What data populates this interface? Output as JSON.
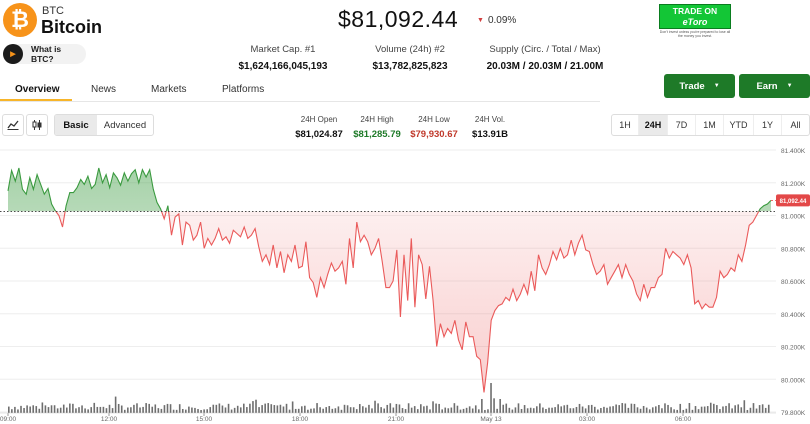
{
  "coin": {
    "ticker": "BTC",
    "name": "Bitcoin",
    "logo_glyph": "₿",
    "what_is": "What is BTC?"
  },
  "price": {
    "value": "$81,092.44",
    "change": "0.09%",
    "direction": "down"
  },
  "promo": {
    "line1": "TRADE ON",
    "line2": "eToro",
    "fine": "Don't invest unless you're prepared to lose all the money you invest."
  },
  "stats": [
    {
      "label": "Market Cap. #1",
      "value": "$1,624,166,045,193"
    },
    {
      "label": "Volume (24h) #2",
      "value": "$13,782,825,823"
    },
    {
      "label": "Supply (Circ. / Total / Max)",
      "value": "20.03M / 20.03M / 21.00M"
    }
  ],
  "tabs": [
    "Overview",
    "News",
    "Markets",
    "Platforms"
  ],
  "actions": {
    "trade": "Trade",
    "earn": "Earn"
  },
  "toolbar": {
    "basic": "Basic",
    "advanced": "Advanced"
  },
  "ohlc": [
    {
      "label": "24H Open",
      "value": "$81,024.87",
      "color": "#111111"
    },
    {
      "label": "24H High",
      "value": "$81,285.79",
      "color": "#1e7a28"
    },
    {
      "label": "24H Low",
      "value": "$79,930.67",
      "color": "#c0392b"
    },
    {
      "label": "24H Vol.",
      "value": "$13.91B",
      "color": "#111111"
    }
  ],
  "ranges": [
    "1H",
    "24H",
    "7D",
    "1M",
    "YTD",
    "1Y",
    "All"
  ],
  "colors": {
    "up": "#3a9a3f",
    "down": "#ea5a5a",
    "accent": "#f7b52a",
    "button": "#1e7a28"
  },
  "chart_data": {
    "type": "line",
    "reference_line": 81024.87,
    "ylim": [
      79800,
      81400
    ],
    "y_ticks": [
      "81.400K",
      "81.200K",
      "81.000K",
      "80.800K",
      "80.600K",
      "80.400K",
      "80.200K",
      "80.000K",
      "79.800K"
    ],
    "x_ticks": [
      "09:00",
      "12:00",
      "15:00",
      "18:00",
      "21:00",
      "May 13",
      "03:00",
      "06:00"
    ],
    "price_label": "81,092.44",
    "series": [
      {
        "values": [
          81150,
          81275,
          81210,
          81290,
          81160,
          81130,
          81230,
          81160,
          81250,
          81190,
          81130,
          81165,
          81070,
          81030,
          81000,
          80930,
          81060,
          81140,
          81140,
          81170,
          81220,
          81190,
          81240,
          81165,
          81190,
          81290,
          81200,
          81250,
          81170,
          81260,
          81230,
          81185,
          81260,
          81210,
          81255,
          81280,
          81200,
          81280,
          81235,
          81280,
          81160,
          81080,
          81040,
          80980,
          81060,
          80880,
          80990,
          81010,
          80820,
          80960,
          80940,
          80850,
          80880,
          80960,
          80800,
          80860,
          80820,
          80860,
          80920,
          80850,
          80870,
          80830,
          80910,
          80890,
          80870,
          80930,
          80860,
          80880,
          80920,
          80810,
          80720,
          80760,
          80700,
          80820,
          80680,
          80780,
          80650,
          80760,
          80720,
          80820,
          80680,
          80690,
          80840,
          80620,
          80590,
          80500,
          80620,
          80560,
          80640,
          80710,
          80660,
          80680,
          80720,
          80580,
          80860,
          80680,
          80960,
          80840,
          80880,
          80840,
          80760,
          80800,
          80860,
          80720,
          80560,
          80560,
          80600,
          80790,
          80380,
          80760,
          80480,
          80860,
          80440,
          80760,
          80700,
          80490,
          80690,
          80480,
          80200,
          80340,
          80260,
          80310,
          80280,
          80360,
          80240,
          80180,
          80350,
          80260,
          80260,
          80140,
          80120,
          79920,
          80100,
          80360,
          80420,
          80450,
          80460,
          80500,
          80480,
          80550,
          80480,
          80520,
          80580,
          80520,
          80660,
          80540,
          80760,
          80680,
          80640,
          80700,
          80780,
          80730,
          80800,
          80740,
          80760,
          80850,
          80760,
          80830,
          80880,
          80790,
          80780,
          80700,
          80640,
          80660,
          80700,
          80580,
          80620,
          80660,
          80700,
          80620,
          80700,
          80640,
          80600,
          80520,
          80480,
          80580,
          80500,
          80560,
          80560,
          80620,
          80640,
          80800,
          80740,
          80780,
          80760,
          80740,
          80700,
          80760,
          80680,
          80460,
          80480,
          80430,
          80460,
          80440,
          80440,
          80500,
          80660,
          80620,
          80640,
          80680,
          80660,
          80760,
          80720,
          80820,
          80940,
          80960,
          81000,
          81040,
          81060,
          81070,
          81092
        ]
      }
    ]
  }
}
